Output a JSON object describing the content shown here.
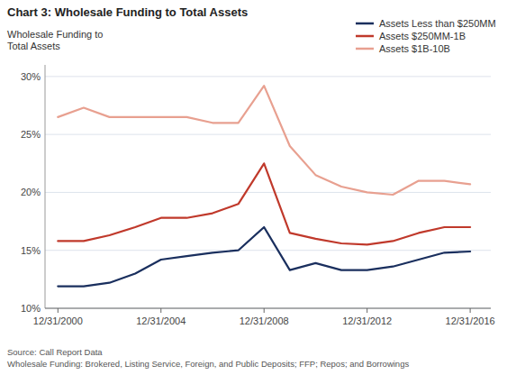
{
  "chart_data": {
    "type": "line",
    "title": "Chart 3: Wholesale Funding to Total Assets",
    "y_label": "Wholesale Funding to\nTotal Assets",
    "source": "Source: Call Report Data\nWholesale Funding: Brokered, Listing Service, Foreign, and Public Deposits; FFP; Repos; and Borrowings",
    "x": [
      2000,
      2001,
      2002,
      2003,
      2004,
      2005,
      2006,
      2007,
      2008,
      2009,
      2010,
      2011,
      2012,
      2013,
      2014,
      2015,
      2016
    ],
    "series": [
      {
        "name": "Assets Less than $250MM",
        "color": "#1a2f5e",
        "values": [
          11.9,
          11.9,
          12.2,
          13.0,
          14.2,
          14.5,
          14.8,
          15.0,
          17.0,
          13.3,
          13.9,
          13.3,
          13.3,
          13.6,
          14.2,
          14.8,
          14.9
        ]
      },
      {
        "name": "Assets $250MM-1B",
        "color": "#c0392b",
        "values": [
          15.8,
          15.8,
          16.3,
          17.0,
          17.8,
          17.8,
          18.2,
          19.0,
          22.5,
          16.5,
          16.0,
          15.6,
          15.5,
          15.8,
          16.5,
          17.0,
          17.0
        ]
      },
      {
        "name": "Assets $1B-10B",
        "color": "#e8a090",
        "values": [
          26.5,
          27.3,
          26.5,
          26.5,
          26.5,
          26.5,
          26.0,
          26.0,
          29.2,
          24.0,
          21.5,
          20.5,
          20.0,
          19.8,
          21.0,
          21.0,
          20.7
        ]
      }
    ],
    "xlim": [
      1999.5,
      2016.8
    ],
    "xticks": [
      {
        "value": 2000,
        "label": "12/31/2000"
      },
      {
        "value": 2004,
        "label": "12/31/2004"
      },
      {
        "value": 2008,
        "label": "12/31/2008"
      },
      {
        "value": 2012,
        "label": "12/31/2012"
      },
      {
        "value": 2016,
        "label": "12/31/2016"
      }
    ],
    "ylim": [
      10,
      31
    ],
    "yticks": [
      {
        "value": 10,
        "label": "10%"
      },
      {
        "value": 15,
        "label": "15%"
      },
      {
        "value": 20,
        "label": "20%"
      },
      {
        "value": 25,
        "label": "25%"
      },
      {
        "value": 30,
        "label": "30%"
      }
    ],
    "grid": true,
    "legend": "top-right"
  }
}
